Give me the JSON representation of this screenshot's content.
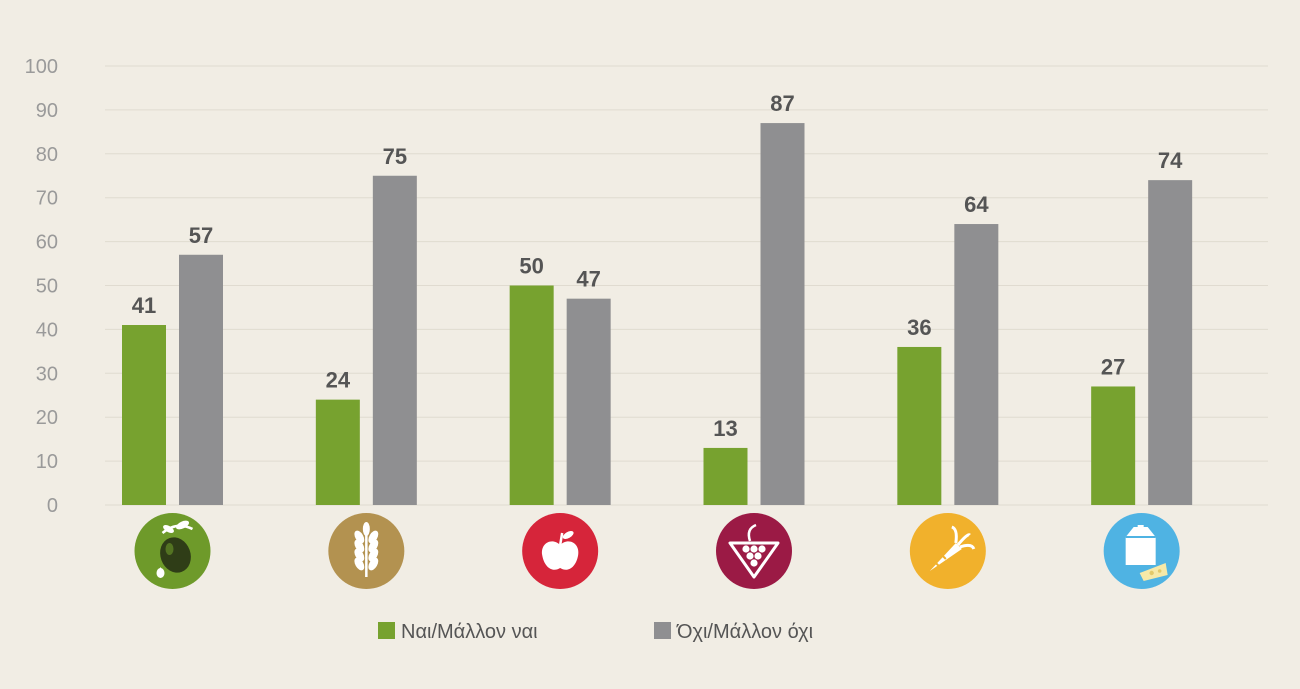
{
  "chart_data": {
    "type": "bar",
    "categories": [
      "olive-icon",
      "wheat-icon",
      "apple-icon",
      "grapes-icon",
      "carrot-icon",
      "milk-cheese-icon"
    ],
    "category_colors": [
      "#6e9a2a",
      "#b39250",
      "#d6253a",
      "#9b1a45",
      "#f1b12c",
      "#4fb3e3"
    ],
    "series": [
      {
        "name": "Ναι/Μάλλον ναι",
        "color": "#77a22f",
        "values": [
          41,
          24,
          50,
          13,
          36,
          27
        ]
      },
      {
        "name": "Όχι/Μάλλον όχι",
        "color": "#8f8f91",
        "values": [
          57,
          75,
          47,
          87,
          64,
          74
        ]
      }
    ],
    "ylim": [
      0,
      100
    ],
    "yticks": [
      0,
      10,
      20,
      30,
      40,
      50,
      60,
      70,
      80,
      90,
      100
    ],
    "grid": true,
    "legend": "bottom-center",
    "xlabel": "",
    "ylabel": "",
    "title": ""
  }
}
